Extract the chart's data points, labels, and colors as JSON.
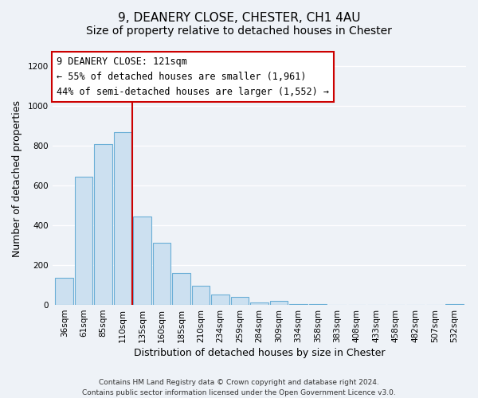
{
  "title": "9, DEANERY CLOSE, CHESTER, CH1 4AU",
  "subtitle": "Size of property relative to detached houses in Chester",
  "xlabel": "Distribution of detached houses by size in Chester",
  "ylabel": "Number of detached properties",
  "categories": [
    "36sqm",
    "61sqm",
    "85sqm",
    "110sqm",
    "135sqm",
    "160sqm",
    "185sqm",
    "210sqm",
    "234sqm",
    "259sqm",
    "284sqm",
    "309sqm",
    "334sqm",
    "358sqm",
    "383sqm",
    "408sqm",
    "433sqm",
    "458sqm",
    "482sqm",
    "507sqm",
    "532sqm"
  ],
  "values": [
    135,
    645,
    805,
    865,
    445,
    310,
    158,
    97,
    53,
    42,
    14,
    20,
    5,
    3,
    2,
    0,
    0,
    0,
    0,
    0,
    4
  ],
  "bar_color": "#cce0f0",
  "bar_edge_color": "#6aaed6",
  "vline_x": 3.5,
  "vline_color": "#cc0000",
  "annotation_title": "9 DEANERY CLOSE: 121sqm",
  "annotation_line1": "← 55% of detached houses are smaller (1,961)",
  "annotation_line2": "44% of semi-detached houses are larger (1,552) →",
  "annotation_box_facecolor": "#ffffff",
  "annotation_box_edgecolor": "#cc0000",
  "ylim": [
    0,
    1270
  ],
  "yticks": [
    0,
    200,
    400,
    600,
    800,
    1000,
    1200
  ],
  "footer_line1": "Contains HM Land Registry data © Crown copyright and database right 2024.",
  "footer_line2": "Contains public sector information licensed under the Open Government Licence v3.0.",
  "bg_color": "#eef2f7",
  "plot_bg_color": "#eef2f7",
  "grid_color": "#ffffff",
  "title_fontsize": 11,
  "subtitle_fontsize": 10,
  "axis_label_fontsize": 9,
  "tick_fontsize": 7.5
}
